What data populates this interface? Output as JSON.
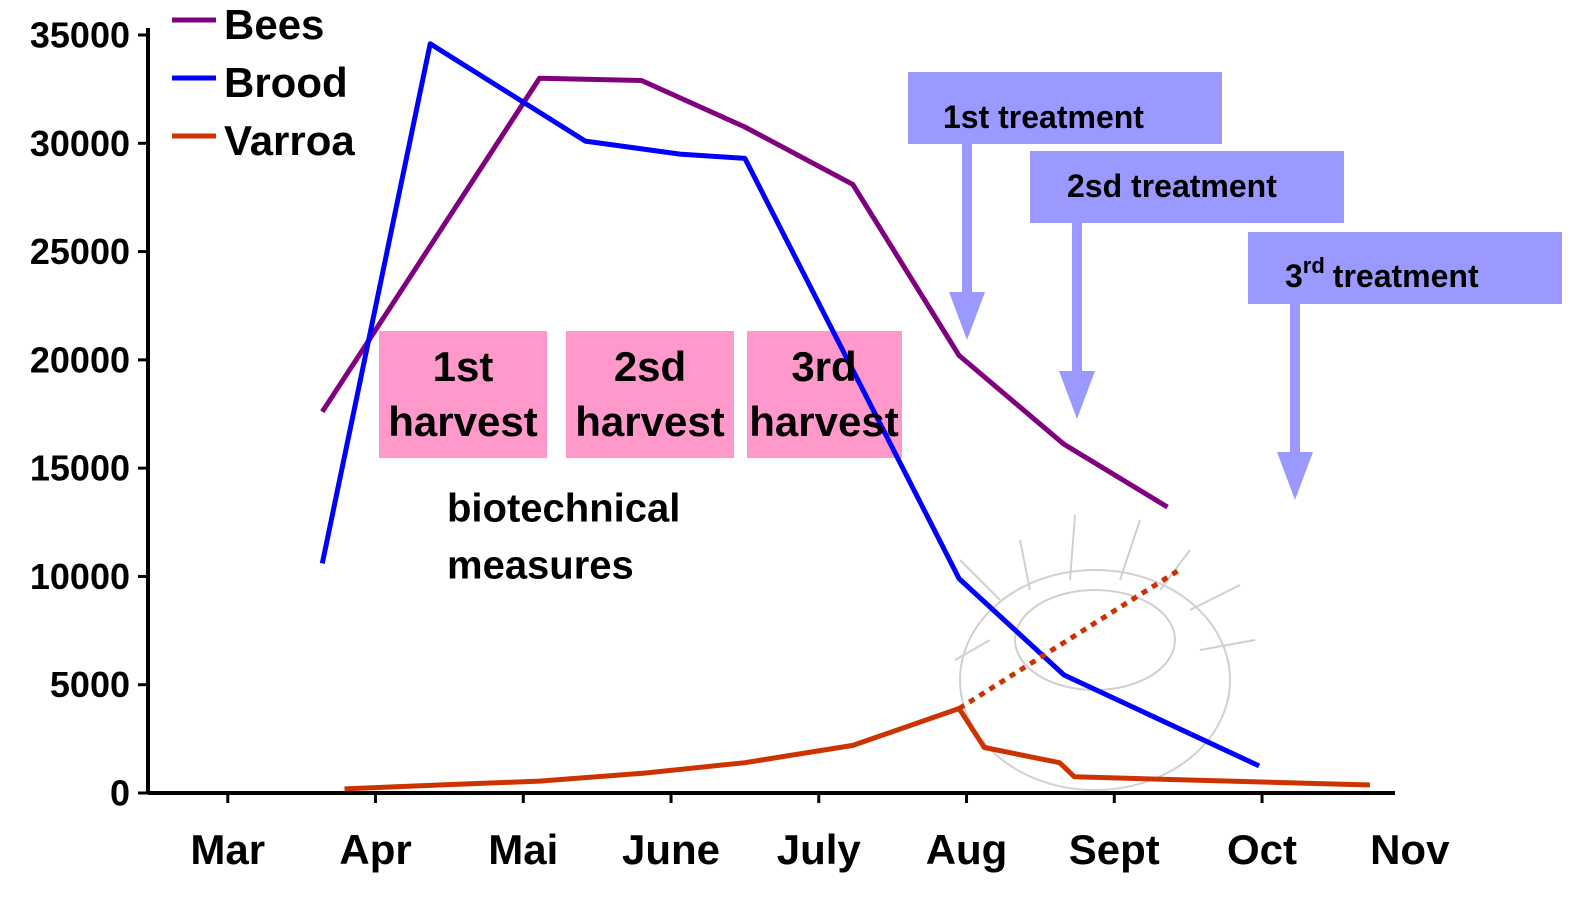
{
  "chart_data": {
    "type": "line",
    "xlim": [
      2.46,
      10.9
    ],
    "ylim": [
      0,
      35000
    ],
    "yticks": [
      0,
      5000,
      10000,
      15000,
      20000,
      25000,
      30000,
      35000
    ],
    "xticks": [
      {
        "value": 3,
        "label": "Mar"
      },
      {
        "value": 4,
        "label": "Apr"
      },
      {
        "value": 5,
        "label": "Mai"
      },
      {
        "value": 6,
        "label": "June"
      },
      {
        "value": 7,
        "label": "July"
      },
      {
        "value": 8,
        "label": "Aug"
      },
      {
        "value": 9,
        "label": "Sept"
      },
      {
        "value": 10,
        "label": "Oct"
      },
      {
        "value": 11,
        "label": "Nov"
      }
    ],
    "series": [
      {
        "name": "Bees",
        "color": "#800080",
        "x": [
          3.64,
          5.11,
          5.8,
          6.5,
          7.23,
          7.95,
          8.66,
          9.36
        ],
        "values": [
          17600,
          33000,
          32900,
          30750,
          28100,
          20200,
          16100,
          13200
        ]
      },
      {
        "name": "Brood",
        "color": "#0000ff",
        "x": [
          3.64,
          4.37,
          5.42,
          6.06,
          6.5,
          7.95,
          8.66,
          9.98
        ],
        "values": [
          10600,
          34600,
          30100,
          29500,
          29300,
          9900,
          5450,
          1250
        ]
      },
      {
        "name": "Varroa",
        "color": "#cc3300",
        "x": [
          3.79,
          4.43,
          5.11,
          5.82,
          6.5,
          7.23,
          7.95,
          8.12,
          8.63,
          8.73,
          10.73
        ],
        "values": [
          190,
          370,
          550,
          920,
          1400,
          2200,
          3900,
          2100,
          1400,
          750,
          370
        ]
      }
    ],
    "projection": {
      "color": "#cc3300",
      "x": [
        7.95,
        9.44
      ],
      "values": [
        3900,
        10300
      ]
    },
    "annotations": {
      "harvests": [
        [
          "1st",
          "harvest"
        ],
        [
          "2sd",
          "harvest"
        ],
        [
          "3rd",
          "harvest"
        ]
      ],
      "biotechnical": [
        "biotechnical",
        "measures"
      ],
      "treatments": [
        {
          "number": "1st",
          "text": "treatment"
        },
        {
          "number": "2sd",
          "text": "treatment"
        },
        {
          "number": "3",
          "suffix": "rd",
          "text": "treatment"
        }
      ]
    }
  }
}
